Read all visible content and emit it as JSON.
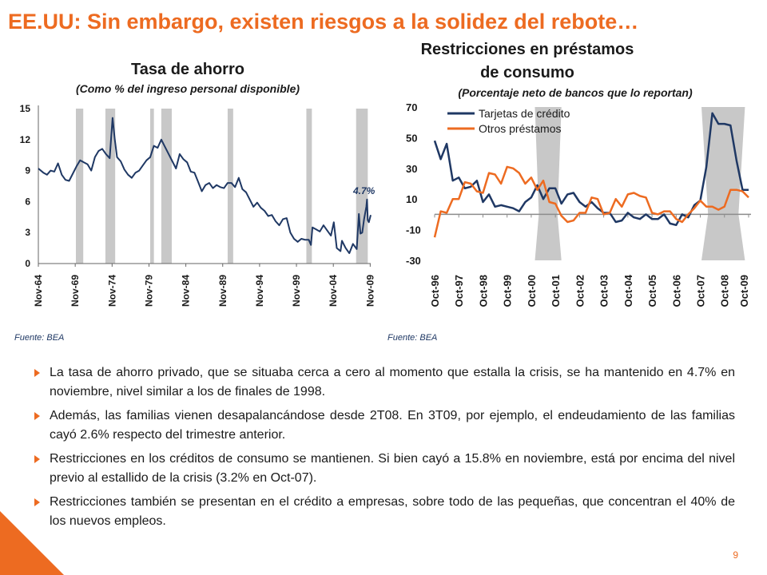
{
  "slide": {
    "title": "EE.UU: Sin embargo, existen riesgos a la solidez del rebote…",
    "page_number": "9",
    "accent_color": "#ED6B21",
    "bullets": [
      "La tasa de ahorro privado, que se situaba cerca a cero al momento que estalla la crisis, se ha mantenido en 4.7% en noviembre, nivel similar a los de finales de 1998.",
      "Además, las familias vienen desapalancándose desde 2T08. En 3T09, por ejemplo, el endeudamiento de las familias cayó 2.6% respecto del trimestre anterior.",
      "Restricciones en los créditos de consumo se mantienen. Si bien cayó a 15.8% en noviembre, está por encima del nivel previo al estallido de la crisis (3.2% en Oct-07).",
      "Restricciones también se presentan en el crédito a empresas, sobre todo de las pequeñas, que concentran el 40% de los nuevos empleos."
    ]
  },
  "chart_data": [
    {
      "type": "line",
      "title": "Tasa de ahorro",
      "subtitle": "(Como % del ingreso personal disponible)",
      "source": "Fuente: BEA",
      "x_tick_labels": [
        "Nov-64",
        "Nov-69",
        "Nov-74",
        "Nov-79",
        "Nov-84",
        "Nov-89",
        "Nov-94",
        "Nov-99",
        "Nov-04",
        "Nov-09"
      ],
      "y_tick_labels": [
        "0",
        "3",
        "6",
        "9",
        "12",
        "15"
      ],
      "ylim": [
        0,
        15
      ],
      "xlim": [
        1964.83,
        2009.9
      ],
      "annotation": "4.7%",
      "line_color": "#1F3864",
      "recession_color": "#C8C8C8",
      "recessions": [
        [
          1969.92,
          1970.92
        ],
        [
          1973.92,
          1975.25
        ],
        [
          1980.0,
          1980.5
        ],
        [
          1981.5,
          1982.92
        ],
        [
          1990.5,
          1991.25
        ],
        [
          2001.17,
          2001.92
        ],
        [
          2007.92,
          2009.5
        ]
      ],
      "series": [
        {
          "x": [
            1964.83,
            1965.5,
            1966.0,
            1966.5,
            1967.0,
            1967.5,
            1968.0,
            1968.5,
            1969.0,
            1969.5,
            1970.0,
            1970.5,
            1971.0,
            1971.5,
            1972.0,
            1972.5,
            1973.0,
            1973.5,
            1974.0,
            1974.5,
            1974.9,
            1975.2,
            1975.5,
            1976.0,
            1976.5,
            1977.0,
            1977.5,
            1978.0,
            1978.5,
            1979.0,
            1979.5,
            1980.0,
            1980.5,
            1981.0,
            1981.5,
            1982.0,
            1982.5,
            1983.0,
            1983.5,
            1984.0,
            1984.5,
            1985.0,
            1985.5,
            1986.0,
            1986.5,
            1987.0,
            1987.5,
            1988.0,
            1988.5,
            1989.0,
            1989.5,
            1990.0,
            1990.5,
            1991.0,
            1991.5,
            1992.0,
            1992.5,
            1993.0,
            1993.5,
            1994.0,
            1994.5,
            1995.0,
            1995.5,
            1996.0,
            1996.5,
            1997.0,
            1997.5,
            1998.0,
            1998.5,
            1999.0,
            1999.5,
            2000.0,
            2000.5,
            2001.0,
            2001.5,
            2001.8,
            2002.0,
            2002.5,
            2003.0,
            2003.5,
            2004.0,
            2004.5,
            2004.9,
            2005.3,
            2005.8,
            2006.0,
            2006.5,
            2007.0,
            2007.5,
            2008.0,
            2008.3,
            2008.5,
            2008.75,
            2009.0,
            2009.3,
            2009.4,
            2009.5,
            2009.65,
            2009.9
          ],
          "y": [
            9.2,
            8.8,
            8.6,
            9.0,
            8.9,
            9.7,
            8.6,
            8.1,
            8.0,
            8.7,
            9.4,
            10.0,
            9.8,
            9.6,
            9.0,
            10.3,
            10.9,
            11.1,
            10.6,
            10.2,
            14.1,
            12.0,
            10.3,
            9.9,
            9.1,
            8.6,
            8.3,
            8.8,
            9.0,
            9.5,
            10.0,
            10.3,
            11.4,
            11.2,
            12.0,
            11.3,
            10.6,
            9.9,
            9.2,
            10.6,
            10.1,
            9.8,
            8.9,
            8.8,
            7.9,
            7.0,
            7.6,
            7.8,
            7.3,
            7.6,
            7.4,
            7.3,
            7.8,
            7.8,
            7.4,
            8.3,
            7.2,
            6.9,
            6.2,
            5.5,
            5.9,
            5.4,
            5.1,
            4.6,
            4.7,
            4.1,
            3.7,
            4.3,
            4.4,
            3.0,
            2.4,
            2.1,
            2.4,
            2.3,
            2.3,
            1.8,
            3.5,
            3.3,
            3.1,
            3.7,
            3.2,
            2.7,
            4.0,
            1.5,
            1.2,
            2.2,
            1.5,
            1.0,
            1.9,
            1.4,
            4.8,
            2.9,
            3.0,
            4.3,
            5.5,
            6.2,
            4.2,
            4.0,
            4.7
          ]
        }
      ]
    },
    {
      "type": "line",
      "title": "Restricciones en préstamos de consumo",
      "subtitle": "(Porcentaje neto de bancos que lo reportan)",
      "source": "Fuente:  BEA",
      "x_tick_labels": [
        "Oct-96",
        "Oct-97",
        "Oct-98",
        "Oct-99",
        "Oct-00",
        "Oct-01",
        "Oct-02",
        "Oct-03",
        "Oct-04",
        "Oct-05",
        "Oct-06",
        "Oct-07",
        "Oct-08",
        "Oct-09"
      ],
      "y_tick_labels": [
        "-30",
        "-10",
        "10",
        "30",
        "50",
        "70"
      ],
      "ylim": [
        -30,
        70
      ],
      "xlim": [
        1996.75,
        2009.85
      ],
      "recession_color": "#C8C8C8",
      "recessions": [
        [
          2000.9,
          2002.0
        ],
        [
          2007.8,
          2009.6
        ]
      ],
      "legend_position": "top-left",
      "series": [
        {
          "name": "Tarjetas de crédito",
          "color": "#1F3864",
          "x": [
            1996.75,
            1997.0,
            1997.25,
            1997.5,
            1997.75,
            1998.0,
            1998.25,
            1998.5,
            1998.75,
            1999.0,
            1999.25,
            1999.5,
            1999.75,
            2000.0,
            2000.25,
            2000.5,
            2000.75,
            2001.0,
            2001.25,
            2001.5,
            2001.75,
            2002.0,
            2002.25,
            2002.5,
            2002.75,
            2003.0,
            2003.25,
            2003.5,
            2003.75,
            2004.0,
            2004.25,
            2004.5,
            2004.75,
            2005.0,
            2005.25,
            2005.5,
            2005.75,
            2006.0,
            2006.25,
            2006.5,
            2006.75,
            2007.0,
            2007.25,
            2007.5,
            2007.75,
            2008.0,
            2008.25,
            2008.5,
            2008.75,
            2009.0,
            2009.25,
            2009.5,
            2009.75
          ],
          "y": [
            48,
            36,
            46,
            22,
            24,
            17,
            18,
            22,
            8,
            13,
            5,
            6,
            5,
            4,
            2,
            8,
            11,
            19,
            10,
            17,
            17,
            7,
            13,
            14,
            8,
            5,
            8,
            4,
            1,
            1,
            -5,
            -4,
            1,
            -2,
            -3,
            0,
            -3,
            -3,
            0,
            -6,
            -7,
            0,
            -2,
            6,
            9,
            31,
            66,
            59,
            59,
            58,
            35,
            16,
            16
          ]
        },
        {
          "name": "Otros préstamos",
          "color": "#ED6B21",
          "x": [
            1996.75,
            1997.0,
            1997.25,
            1997.5,
            1997.75,
            1998.0,
            1998.25,
            1998.5,
            1998.75,
            1999.0,
            1999.25,
            1999.5,
            1999.75,
            2000.0,
            2000.25,
            2000.5,
            2000.75,
            2001.0,
            2001.25,
            2001.5,
            2001.75,
            2002.0,
            2002.25,
            2002.5,
            2002.75,
            2003.0,
            2003.25,
            2003.5,
            2003.75,
            2004.0,
            2004.25,
            2004.5,
            2004.75,
            2005.0,
            2005.25,
            2005.5,
            2005.75,
            2006.0,
            2006.25,
            2006.5,
            2006.75,
            2007.0,
            2007.25,
            2007.5,
            2007.75,
            2008.0,
            2008.25,
            2008.5,
            2008.75,
            2009.0,
            2009.25,
            2009.5,
            2009.75
          ],
          "y": [
            -15,
            2,
            1,
            10,
            10,
            21,
            20,
            15,
            14,
            27,
            26,
            20,
            31,
            30,
            27,
            20,
            24,
            16,
            22,
            8,
            7,
            -1,
            -5,
            -4,
            1,
            1,
            11,
            10,
            0,
            1,
            10,
            5,
            13,
            14,
            12,
            11,
            1,
            0,
            2,
            2,
            -3,
            -5,
            0,
            4,
            9,
            5,
            5,
            3,
            5,
            16,
            16,
            15,
            11
          ]
        }
      ]
    }
  ]
}
